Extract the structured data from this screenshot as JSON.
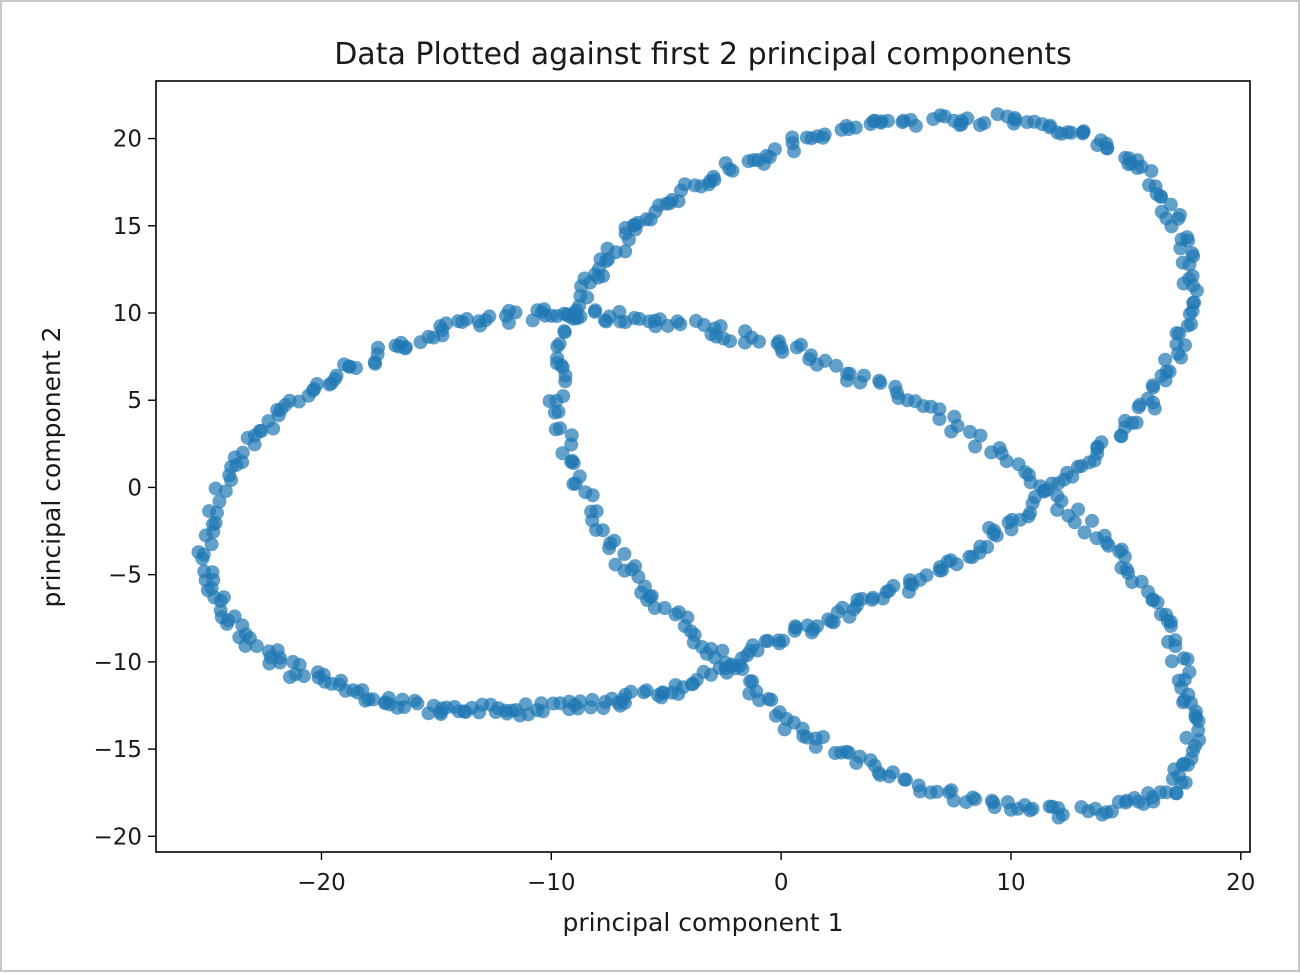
{
  "chart_data": {
    "type": "scatter",
    "title": "Data Plotted against first 2 principal components",
    "xlabel": "principal component 1",
    "ylabel": "principal component 2",
    "xlim": [
      -27.2,
      20.4
    ],
    "ylim": [
      -20.9,
      23.3
    ],
    "xticks": [
      -20,
      -10,
      0,
      10,
      20
    ],
    "yticks": [
      20,
      15,
      10,
      5,
      0,
      -5,
      -10,
      -15,
      -20
    ],
    "xtick_labels": [
      "−20",
      "−10",
      "0",
      "10",
      "20"
    ],
    "ytick_labels": [
      "20",
      "15",
      "10",
      "5",
      "0",
      "−5",
      "−10",
      "−15",
      "−20"
    ],
    "grid": false,
    "legend": "none",
    "series": [
      {
        "color": "#1f77b4",
        "alpha": 0.7,
        "shape": "trefoil-knot projection (closed loop, ~700 points)",
        "points": [
          [
            -25.0,
            -4.0
          ],
          [
            -24.8,
            -1.5
          ],
          [
            -24.0,
            1.0
          ],
          [
            -22.9,
            3.0
          ],
          [
            -21.7,
            4.6
          ],
          [
            -20.2,
            5.8
          ],
          [
            -18.5,
            7.0
          ],
          [
            -16.8,
            8.0
          ],
          [
            -15.0,
            8.9
          ],
          [
            -13.2,
            9.4
          ],
          [
            -11.3,
            9.9
          ],
          [
            -9.8,
            9.9
          ],
          [
            -8.2,
            9.8
          ],
          [
            -6.5,
            9.7
          ],
          [
            -4.5,
            9.4
          ],
          [
            -2.5,
            8.9
          ],
          [
            -0.5,
            8.3
          ],
          [
            1.5,
            7.5
          ],
          [
            3.5,
            6.3
          ],
          [
            5.5,
            5.0
          ],
          [
            7.5,
            3.5
          ],
          [
            9.5,
            1.8
          ],
          [
            11.5,
            0.0
          ],
          [
            13.0,
            -1.8
          ],
          [
            14.5,
            -3.6
          ],
          [
            15.6,
            -5.5
          ],
          [
            16.6,
            -7.6
          ],
          [
            17.3,
            -9.8
          ],
          [
            17.8,
            -12.0
          ],
          [
            18.0,
            -14.0
          ],
          [
            17.8,
            -15.8
          ],
          [
            17.0,
            -17.2
          ],
          [
            15.8,
            -18.0
          ],
          [
            14.0,
            -18.5
          ],
          [
            12.0,
            -18.6
          ],
          [
            10.0,
            -18.3
          ],
          [
            8.0,
            -17.8
          ],
          [
            6.0,
            -17.0
          ],
          [
            4.0,
            -16.0
          ],
          [
            2.0,
            -14.9
          ],
          [
            0.5,
            -13.8
          ],
          [
            -1.0,
            -12.0
          ],
          [
            -2.2,
            -10.2
          ],
          [
            -3.5,
            -8.8
          ],
          [
            -5.0,
            -7.0
          ],
          [
            -6.3,
            -5.3
          ],
          [
            -7.5,
            -3.2
          ],
          [
            -8.5,
            -0.8
          ],
          [
            -9.2,
            1.8
          ],
          [
            -9.8,
            4.5
          ],
          [
            -9.6,
            7.0
          ],
          [
            -9.2,
            9.5
          ],
          [
            -8.6,
            11.2
          ],
          [
            -7.8,
            12.8
          ],
          [
            -6.8,
            14.3
          ],
          [
            -5.6,
            15.7
          ],
          [
            -4.2,
            16.9
          ],
          [
            -2.6,
            18.0
          ],
          [
            -0.8,
            19.0
          ],
          [
            1.0,
            19.9
          ],
          [
            3.0,
            20.6
          ],
          [
            5.0,
            21.0
          ],
          [
            7.0,
            21.1
          ],
          [
            9.0,
            21.1
          ],
          [
            11.0,
            20.9
          ],
          [
            12.8,
            20.4
          ],
          [
            14.3,
            19.6
          ],
          [
            15.6,
            18.3
          ],
          [
            16.6,
            16.6
          ],
          [
            17.4,
            14.6
          ],
          [
            17.8,
            12.6
          ],
          [
            17.8,
            10.4
          ],
          [
            17.4,
            8.3
          ],
          [
            16.8,
            6.3
          ],
          [
            15.8,
            4.5
          ],
          [
            14.5,
            2.8
          ],
          [
            13.0,
            1.2
          ],
          [
            11.5,
            -0.5
          ],
          [
            10.0,
            -2.0
          ],
          [
            8.5,
            -3.4
          ],
          [
            7.0,
            -4.6
          ],
          [
            5.5,
            -5.6
          ],
          [
            4.0,
            -6.5
          ],
          [
            2.5,
            -7.3
          ],
          [
            1.0,
            -8.1
          ],
          [
            -0.5,
            -9.0
          ],
          [
            -2.0,
            -10.0
          ],
          [
            -3.5,
            -11.0
          ],
          [
            -5.0,
            -11.7
          ],
          [
            -6.5,
            -12.1
          ],
          [
            -8.0,
            -12.4
          ],
          [
            -9.5,
            -12.6
          ],
          [
            -11.0,
            -12.7
          ],
          [
            -12.5,
            -12.8
          ],
          [
            -14.0,
            -12.8
          ],
          [
            -15.5,
            -12.6
          ],
          [
            -17.0,
            -12.3
          ],
          [
            -18.5,
            -11.8
          ],
          [
            -20.0,
            -11.1
          ],
          [
            -21.5,
            -10.3
          ],
          [
            -22.8,
            -9.2
          ],
          [
            -23.9,
            -7.6
          ],
          [
            -24.6,
            -5.9
          ]
        ]
      }
    ]
  }
}
